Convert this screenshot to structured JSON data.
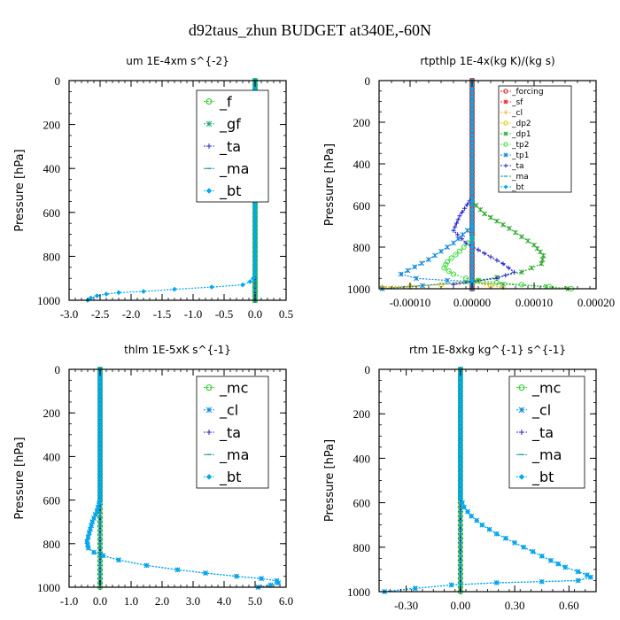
{
  "figure": {
    "title": "d92taus_zhun  BUDGET at340E,-60N"
  },
  "colors": {
    "f": "#22cc22",
    "gf": "#11aa66",
    "ta": "#2222cc",
    "ma": "#119999",
    "bt": "#00aaee",
    "forcing": "#cc2222",
    "sf": "#ee2222",
    "cl": "#ffaa22",
    "dp2": "#ddcc00",
    "dp1": "#33aa33",
    "tp2": "#44dd44",
    "tp1": "#1188dd",
    "mc": "#22cc22",
    "cl_blue": "#0088dd"
  },
  "chart_data": [
    {
      "type": "line",
      "title": "um   1E-4xm s^{-2}",
      "xlabel": "",
      "ylabel": "Pressure [hPa]",
      "xlim": [
        -3.0,
        0.5
      ],
      "ylim": [
        1000,
        0
      ],
      "xticks": [
        -3.0,
        -2.5,
        -2.0,
        -1.5,
        -1.0,
        -0.5,
        0.0,
        0.5
      ],
      "xtick_labels": [
        "-3.0",
        "-2.5",
        "-2.0",
        "-1.5",
        "-1.0",
        "-0.5",
        "0.0",
        "0.5"
      ],
      "yticks": [
        0,
        200,
        400,
        600,
        800,
        1000
      ],
      "legend": {
        "position": "top-right",
        "font_size": 16
      },
      "series": [
        {
          "name": "_f",
          "color_key": "f",
          "marker": "o",
          "x": [
            0,
            0
          ],
          "y": [
            0,
            1000
          ]
        },
        {
          "name": "_gf",
          "color_key": "gf",
          "marker": "x",
          "x": [
            0,
            0
          ],
          "y": [
            0,
            1000
          ]
        },
        {
          "name": "_ta",
          "color_key": "ta",
          "marker": "+",
          "x": [
            0,
            0
          ],
          "y": [
            0,
            1000
          ]
        },
        {
          "name": "_ma",
          "color_key": "ma",
          "marker": "-",
          "x": [
            0,
            0
          ],
          "y": [
            0,
            1000
          ]
        },
        {
          "name": "_bt",
          "color_key": "bt",
          "marker": "d",
          "x": [
            0,
            0,
            -0.03,
            -0.08,
            -0.2,
            -0.7,
            -1.3,
            -1.8,
            -2.2,
            -2.4,
            -2.55,
            -2.65,
            -2.7
          ],
          "y": [
            0,
            880,
            900,
            915,
            930,
            940,
            950,
            960,
            965,
            972,
            980,
            990,
            1000
          ]
        }
      ]
    },
    {
      "type": "line",
      "title": "rtpthlp   1E-4x(kg K)/(kg s)",
      "xlabel": "",
      "ylabel": "Pressure [hPa]",
      "xlim": [
        -0.00015,
        0.0002
      ],
      "ylim": [
        1000,
        0
      ],
      "xticks": [
        -0.0001,
        0.0,
        0.0001,
        0.0002
      ],
      "xtick_labels": [
        "-0.00010",
        "0.00000",
        "0.00010",
        "0.00020"
      ],
      "yticks": [
        0,
        200,
        400,
        600,
        800,
        1000
      ],
      "legend": {
        "position": "top-right",
        "font_size": 9
      },
      "series": [
        {
          "name": "_forcing",
          "color_key": "forcing",
          "marker": "o",
          "x": [
            0,
            0
          ],
          "y": [
            0,
            1000
          ]
        },
        {
          "name": "_sf",
          "color_key": "sf",
          "marker": "x",
          "x": [
            0,
            0
          ],
          "y": [
            0,
            1000
          ]
        },
        {
          "name": "_cl",
          "color_key": "cl",
          "marker": "+",
          "x": [
            -0.000145,
            -8e-05,
            -2e-05,
            0.0,
            2e-05,
            5e-05
          ],
          "y": [
            990,
            985,
            975,
            965,
            975,
            995
          ]
        },
        {
          "name": "_dp2",
          "color_key": "dp2",
          "marker": "o",
          "x": [
            -0.000145,
            -0.0001,
            -5e-05,
            0.0,
            3e-05
          ],
          "y": [
            995,
            990,
            980,
            970,
            985
          ]
        },
        {
          "name": "_dp1",
          "color_key": "dp1",
          "marker": "x",
          "x": [
            0,
            2e-05,
            6e-05,
            0.0001,
            0.000115,
            0.000112,
            8e-05,
            4e-05,
            1e-05,
            -1e-05,
            5e-05,
            0.00012,
            0.000155
          ],
          "y": [
            580,
            640,
            710,
            790,
            840,
            880,
            920,
            945,
            960,
            968,
            978,
            990,
            1000
          ]
        },
        {
          "name": "_tp2",
          "color_key": "tp2",
          "marker": "o",
          "x": [
            0,
            -2e-05,
            -4e-05,
            -4.5e-05,
            -3e-05,
            -1e-05,
            1e-05,
            4e-05,
            8e-05,
            0.000125,
            0.00016
          ],
          "y": [
            760,
            820,
            870,
            900,
            930,
            950,
            960,
            970,
            980,
            990,
            1000
          ]
        },
        {
          "name": "_tp1",
          "color_key": "tp1",
          "marker": "x",
          "x": [
            0,
            -3e-05,
            -7e-05,
            -0.000115,
            -9e-05,
            -4e-05,
            0.0,
            -8e-05,
            -0.000145
          ],
          "y": [
            700,
            780,
            860,
            930,
            950,
            960,
            965,
            985,
            1000
          ]
        },
        {
          "name": "_ta",
          "color_key": "ta",
          "marker": "+",
          "x": [
            0,
            -2e-05,
            -3e-05,
            -1e-05,
            2e-05,
            5e-05,
            6.8e-05,
            4e-05,
            0.0,
            -3e-05
          ],
          "y": [
            560,
            650,
            720,
            780,
            830,
            880,
            920,
            950,
            965,
            980
          ]
        },
        {
          "name": "_ma",
          "color_key": "ma",
          "marker": "-",
          "x": [
            0,
            0
          ],
          "y": [
            0,
            1000
          ]
        },
        {
          "name": "_bt",
          "color_key": "bt",
          "marker": "d",
          "x": [
            0,
            0
          ],
          "y": [
            0,
            1000
          ]
        }
      ]
    },
    {
      "type": "line",
      "title": "thlm   1E-5xK s^{-1}",
      "xlabel": "",
      "ylabel": "Pressure [hPa]",
      "xlim": [
        -1.0,
        6.0
      ],
      "ylim": [
        1000,
        0
      ],
      "xticks": [
        -1.0,
        0.0,
        1.0,
        2.0,
        3.0,
        4.0,
        5.0,
        6.0
      ],
      "xtick_labels": [
        "-1.0",
        "0.0",
        "1.0",
        "2.0",
        "3.0",
        "4.0",
        "5.0",
        "6.0"
      ],
      "yticks": [
        0,
        200,
        400,
        600,
        800,
        1000
      ],
      "legend": {
        "position": "top-right",
        "font_size": 16
      },
      "series": [
        {
          "name": "_mc",
          "color_key": "mc",
          "marker": "o",
          "x": [
            0,
            0
          ],
          "y": [
            0,
            1000
          ]
        },
        {
          "name": "_cl",
          "color_key": "cl_blue",
          "marker": "x",
          "x": [
            0,
            0,
            -0.1,
            -0.25,
            -0.35,
            -0.42,
            -0.38,
            -0.2,
            0.1,
            0.6,
            1.5,
            2.5,
            3.4,
            4.4,
            5.2,
            5.7,
            5.75,
            5.5,
            5.1
          ],
          "y": [
            0,
            600,
            650,
            700,
            750,
            790,
            820,
            840,
            855,
            875,
            900,
            920,
            935,
            950,
            960,
            970,
            980,
            990,
            1000
          ]
        },
        {
          "name": "_ta",
          "color_key": "ta",
          "marker": "+",
          "x": [
            0,
            0
          ],
          "y": [
            0,
            1000
          ]
        },
        {
          "name": "_ma",
          "color_key": "ma",
          "marker": "-",
          "x": [
            0,
            0
          ],
          "y": [
            0,
            1000
          ]
        },
        {
          "name": "_bt",
          "color_key": "bt",
          "marker": "d",
          "x": [
            0,
            0,
            -0.1,
            -0.25,
            -0.35,
            -0.42,
            -0.38,
            -0.2,
            0.1,
            0.6,
            1.5,
            2.5,
            3.4,
            4.4,
            5.2,
            5.7,
            5.75,
            5.5,
            5.1
          ],
          "y": [
            0,
            600,
            650,
            700,
            750,
            790,
            820,
            840,
            855,
            875,
            900,
            920,
            935,
            950,
            960,
            970,
            980,
            990,
            1000
          ]
        }
      ]
    },
    {
      "type": "line",
      "title": "rtm   1E-8xkg kg^{-1} s^{-1}",
      "xlabel": "",
      "ylabel": "Pressure [hPa]",
      "xlim": [
        -0.45,
        0.75
      ],
      "ylim": [
        1000,
        0
      ],
      "xticks": [
        -0.3,
        0.0,
        0.3,
        0.6
      ],
      "xtick_labels": [
        "-0.30",
        "0.00",
        "0.30",
        "0.60"
      ],
      "yticks": [
        0,
        200,
        400,
        600,
        800,
        1000
      ],
      "legend": {
        "position": "top-right",
        "font_size": 16
      },
      "series": [
        {
          "name": "_mc",
          "color_key": "mc",
          "marker": "o",
          "x": [
            0,
            0
          ],
          "y": [
            0,
            1000
          ]
        },
        {
          "name": "_cl",
          "color_key": "cl_blue",
          "marker": "x",
          "x": [
            0,
            0,
            0.02,
            0.06,
            0.12,
            0.2,
            0.3,
            0.4,
            0.5,
            0.58,
            0.65,
            0.7,
            0.72,
            0.65,
            0.45,
            0.2,
            -0.05,
            -0.25,
            -0.42
          ],
          "y": [
            0,
            580,
            620,
            660,
            700,
            740,
            780,
            820,
            860,
            890,
            910,
            925,
            935,
            950,
            955,
            960,
            970,
            985,
            1000
          ]
        },
        {
          "name": "_ta",
          "color_key": "ta",
          "marker": "+",
          "x": [
            0,
            0
          ],
          "y": [
            0,
            1000
          ]
        },
        {
          "name": "_ma",
          "color_key": "ma",
          "marker": "-",
          "x": [
            0,
            0
          ],
          "y": [
            0,
            1000
          ]
        },
        {
          "name": "_bt",
          "color_key": "bt",
          "marker": "d",
          "x": [
            0,
            0,
            0.02,
            0.06,
            0.12,
            0.2,
            0.3,
            0.4,
            0.5,
            0.58,
            0.65,
            0.7,
            0.72,
            0.65,
            0.45,
            0.2,
            -0.05,
            -0.25,
            -0.42
          ],
          "y": [
            0,
            580,
            620,
            660,
            700,
            740,
            780,
            820,
            860,
            890,
            910,
            925,
            935,
            950,
            955,
            960,
            970,
            985,
            1000
          ]
        }
      ]
    }
  ]
}
